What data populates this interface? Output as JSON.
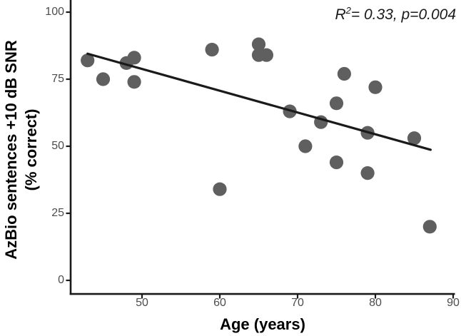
{
  "chart_data": {
    "type": "scatter",
    "title": "",
    "xlabel": "Age (years)",
    "ylabel_line1": "AzBio sentences +10 dB SNR",
    "ylabel_line2": "(% correct)",
    "annotation": {
      "prefix": "R",
      "sup": "2",
      "rest": "= 0.33, p=0.004"
    },
    "r_squared": 0.33,
    "p_value": 0.004,
    "x_ticks": [
      50,
      60,
      70,
      80,
      90
    ],
    "y_ticks": [
      0,
      25,
      50,
      75,
      100
    ],
    "xlim": [
      40.8,
      90.2
    ],
    "ylim": [
      -5,
      104.5
    ],
    "grid": false,
    "legend": "none",
    "points": [
      [
        43,
        82
      ],
      [
        45,
        75
      ],
      [
        48,
        81
      ],
      [
        49,
        83
      ],
      [
        49,
        74
      ],
      [
        59,
        86
      ],
      [
        60,
        34
      ],
      [
        65,
        88
      ],
      [
        65,
        84
      ],
      [
        66,
        84
      ],
      [
        69,
        63
      ],
      [
        71,
        50
      ],
      [
        73,
        59
      ],
      [
        75,
        66
      ],
      [
        75,
        44
      ],
      [
        76,
        77
      ],
      [
        79,
        55
      ],
      [
        79,
        40
      ],
      [
        80,
        72
      ],
      [
        85,
        53
      ],
      [
        87,
        20
      ]
    ],
    "regression_line": {
      "x1": 43,
      "y1": 84.5,
      "x2": 87.1,
      "y2": 48.7
    },
    "colors": {
      "point": "#5f5f5f",
      "line": "#1a1a1a",
      "axis": "#1a1a1a",
      "tick_label": "#4d4d4d",
      "background": "#ffffff"
    }
  }
}
